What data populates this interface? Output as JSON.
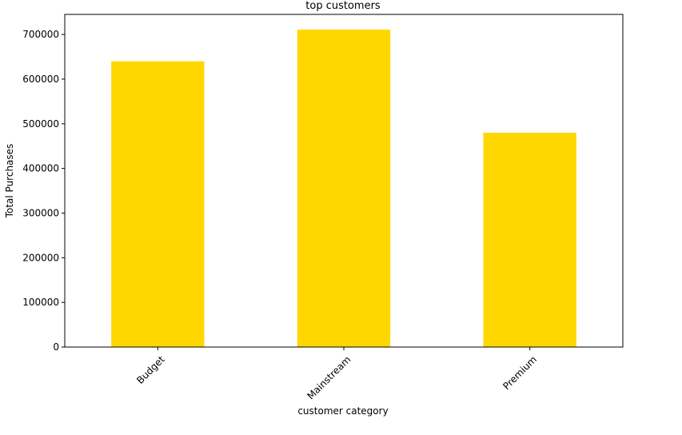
{
  "chart_data": {
    "type": "bar",
    "title": "top customers",
    "xlabel": "customer category",
    "ylabel": "Total Purchases",
    "categories": [
      "Budget",
      "Mainstream",
      "Premium"
    ],
    "values": [
      640000,
      711000,
      480000
    ],
    "ylim": [
      0,
      745000
    ],
    "yticks": [
      0,
      100000,
      200000,
      300000,
      400000,
      500000,
      600000,
      700000
    ],
    "ytick_labels": [
      "0",
      "100000",
      "200000",
      "300000",
      "400000",
      "500000",
      "600000",
      "700000"
    ],
    "bar_color": "#FFD700",
    "grid": false,
    "legend": "none",
    "xtick_rotation_deg": 45
  }
}
